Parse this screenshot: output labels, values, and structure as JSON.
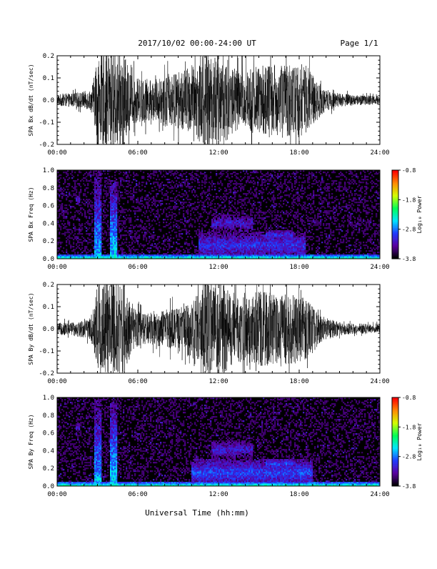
{
  "header": {
    "title": "2017/10/02  00:00-24:00 UT",
    "page": "Page 1/1"
  },
  "footer": {
    "xlabel": "Universal Time (hh:mm)"
  },
  "colors": {
    "trace": "#000000",
    "frame": "#000000",
    "background": "#ffffff",
    "spec_background": "#000000",
    "colormap": [
      "#000000",
      "#5b00a0",
      "#1f3cff",
      "#00e5ff",
      "#00ff55",
      "#d2ff00",
      "#ff8c00",
      "#ff0000"
    ]
  },
  "chart_data": [
    {
      "id": "bx-timeseries",
      "type": "line",
      "ylabel": "SPA Bx dB/dt (nT/sec)",
      "xlim": [
        0,
        24
      ],
      "ylim": [
        -0.2,
        0.2
      ],
      "x_ticks": [
        "00:00",
        "06:00",
        "12:00",
        "18:00",
        "24:00"
      ],
      "y_ticks": [
        {
          "v": 0.2,
          "label": "0.2"
        },
        {
          "v": 0.1,
          "label": "0.1"
        },
        {
          "v": 0.0,
          "label": "0.0"
        },
        {
          "v": -0.1,
          "label": "-0.1"
        },
        {
          "v": -0.2,
          "label": "-0.2"
        }
      ],
      "amplitude_envelope": {
        "x": [
          0,
          0.5,
          1.0,
          1.5,
          2.0,
          2.5,
          2.8,
          3.0,
          3.2,
          3.6,
          4.0,
          4.5,
          5.0,
          5.5,
          6.0,
          6.5,
          7.0,
          7.5,
          8.0,
          8.5,
          9.0,
          9.5,
          10.0,
          10.5,
          10.8,
          11.2,
          11.6,
          12.0,
          12.5,
          13.0,
          13.5,
          14.0,
          14.5,
          15.0,
          15.5,
          16.0,
          16.5,
          17.0,
          17.5,
          18.0,
          18.5,
          19.0,
          19.5,
          20.0,
          20.5,
          21.0,
          22.0,
          23.0,
          24.0
        ],
        "y": [
          0.025,
          0.03,
          0.03,
          0.035,
          0.04,
          0.045,
          0.12,
          0.22,
          0.2,
          0.22,
          0.22,
          0.22,
          0.2,
          0.12,
          0.1,
          0.1,
          0.09,
          0.1,
          0.12,
          0.12,
          0.13,
          0.14,
          0.16,
          0.18,
          0.22,
          0.22,
          0.22,
          0.22,
          0.2,
          0.16,
          0.14,
          0.14,
          0.15,
          0.16,
          0.16,
          0.16,
          0.16,
          0.16,
          0.17,
          0.17,
          0.16,
          0.12,
          0.08,
          0.05,
          0.04,
          0.03,
          0.025,
          0.022,
          0.02
        ]
      }
    },
    {
      "id": "bx-spectrogram",
      "type": "heatmap",
      "ylabel": "SPA Bx Freq (Hz)",
      "colorbar_label": "Log₁₀ Power",
      "colorbar_range": [
        -3.8,
        -0.8
      ],
      "colorbar_ticks": [
        {
          "v": -0.8,
          "label": "-0.8"
        },
        {
          "v": -1.8,
          "label": "-1.8"
        },
        {
          "v": -2.8,
          "label": "-2.8"
        },
        {
          "v": -3.8,
          "label": "-3.8"
        }
      ],
      "xlim": [
        0,
        24
      ],
      "ylim": [
        0,
        1.0
      ],
      "x_ticks": [
        "00:00",
        "06:00",
        "12:00",
        "18:00",
        "24:00"
      ],
      "y_ticks": [
        {
          "v": 1.0,
          "label": "1.0"
        },
        {
          "v": 0.8,
          "label": "0.8"
        },
        {
          "v": 0.6,
          "label": "0.6"
        },
        {
          "v": 0.4,
          "label": "0.4"
        },
        {
          "v": 0.2,
          "label": "0.2"
        },
        {
          "v": 0.0,
          "label": "0.0"
        }
      ],
      "noise_floor": -3.8,
      "features": [
        {
          "kind": "ground_band",
          "t0": 0.0,
          "t1": 24.0,
          "f_top": 0.05,
          "power": -2.6
        },
        {
          "kind": "burst",
          "t0": 2.8,
          "t1": 3.3,
          "f_top": 1.0,
          "power": -2.7
        },
        {
          "kind": "burst",
          "t0": 3.9,
          "t1": 4.5,
          "f_top": 0.9,
          "power": -2.6
        },
        {
          "kind": "blob",
          "t0": 1.4,
          "t1": 1.7,
          "f0": 0.6,
          "f1": 0.72,
          "power": -3.0
        },
        {
          "kind": "blob",
          "t0": 10.5,
          "t1": 18.5,
          "f0": 0.0,
          "f1": 0.3,
          "power": -2.9
        },
        {
          "kind": "blob",
          "t0": 11.5,
          "t1": 14.5,
          "f0": 0.3,
          "f1": 0.5,
          "power": -3.0
        },
        {
          "kind": "blob",
          "t0": 15.5,
          "t1": 17.5,
          "f0": 0.22,
          "f1": 0.32,
          "power": -2.9
        }
      ]
    },
    {
      "id": "by-timeseries",
      "type": "line",
      "ylabel": "SPA By dB/dt (nT/sec)",
      "xlim": [
        0,
        24
      ],
      "ylim": [
        -0.2,
        0.2
      ],
      "x_ticks": [
        "00:00",
        "06:00",
        "12:00",
        "18:00",
        "24:00"
      ],
      "y_ticks": [
        {
          "v": 0.2,
          "label": "0.2"
        },
        {
          "v": 0.1,
          "label": "0.1"
        },
        {
          "v": 0.0,
          "label": "0.0"
        },
        {
          "v": -0.1,
          "label": "-0.1"
        },
        {
          "v": -0.2,
          "label": "-0.2"
        }
      ],
      "amplitude_envelope": {
        "x": [
          0,
          0.5,
          1.0,
          1.5,
          2.0,
          2.5,
          2.8,
          3.0,
          3.2,
          3.6,
          4.0,
          4.5,
          5.0,
          5.5,
          6.0,
          6.5,
          7.0,
          7.5,
          8.0,
          8.5,
          9.0,
          9.5,
          10.0,
          10.5,
          10.8,
          11.2,
          11.6,
          12.0,
          12.5,
          13.0,
          13.5,
          14.0,
          14.5,
          15.0,
          15.5,
          16.0,
          16.5,
          17.0,
          17.5,
          18.0,
          18.5,
          19.0,
          19.5,
          20.0,
          20.5,
          21.0,
          22.0,
          23.0,
          24.0
        ],
        "y": [
          0.025,
          0.03,
          0.03,
          0.035,
          0.04,
          0.05,
          0.14,
          0.22,
          0.22,
          0.22,
          0.22,
          0.22,
          0.2,
          0.1,
          0.08,
          0.07,
          0.07,
          0.08,
          0.08,
          0.09,
          0.1,
          0.11,
          0.13,
          0.16,
          0.22,
          0.22,
          0.22,
          0.22,
          0.2,
          0.17,
          0.15,
          0.15,
          0.16,
          0.17,
          0.17,
          0.16,
          0.16,
          0.16,
          0.16,
          0.15,
          0.14,
          0.11,
          0.07,
          0.05,
          0.04,
          0.03,
          0.025,
          0.022,
          0.02
        ]
      }
    },
    {
      "id": "by-spectrogram",
      "type": "heatmap",
      "ylabel": "SPA By Freq (Hz)",
      "colorbar_label": "Log₁₀ Power",
      "colorbar_range": [
        -3.8,
        -0.8
      ],
      "colorbar_ticks": [
        {
          "v": -0.8,
          "label": "-0.8"
        },
        {
          "v": -1.8,
          "label": "-1.8"
        },
        {
          "v": -2.8,
          "label": "-2.8"
        },
        {
          "v": -3.8,
          "label": "-3.8"
        }
      ],
      "xlim": [
        0,
        24
      ],
      "ylim": [
        0,
        1.0
      ],
      "x_ticks": [
        "00:00",
        "06:00",
        "12:00",
        "18:00",
        "24:00"
      ],
      "y_ticks": [
        {
          "v": 1.0,
          "label": "1.0"
        },
        {
          "v": 0.8,
          "label": "0.8"
        },
        {
          "v": 0.6,
          "label": "0.6"
        },
        {
          "v": 0.4,
          "label": "0.4"
        },
        {
          "v": 0.2,
          "label": "0.2"
        },
        {
          "v": 0.0,
          "label": "0.0"
        }
      ],
      "noise_floor": -3.8,
      "features": [
        {
          "kind": "ground_band",
          "t0": 0.0,
          "t1": 24.0,
          "f_top": 0.05,
          "power": -2.6
        },
        {
          "kind": "burst",
          "t0": 2.8,
          "t1": 3.3,
          "f_top": 1.0,
          "power": -2.7
        },
        {
          "kind": "burst",
          "t0": 3.9,
          "t1": 4.5,
          "f_top": 0.95,
          "power": -2.6
        },
        {
          "kind": "blob",
          "t0": 1.4,
          "t1": 1.7,
          "f0": 0.6,
          "f1": 0.72,
          "power": -3.0
        },
        {
          "kind": "blob",
          "t0": 10.0,
          "t1": 19.0,
          "f0": 0.0,
          "f1": 0.3,
          "power": -2.8
        },
        {
          "kind": "blob",
          "t0": 11.5,
          "t1": 14.5,
          "f0": 0.3,
          "f1": 0.52,
          "power": -3.0
        },
        {
          "kind": "blob",
          "t0": 15.5,
          "t1": 17.5,
          "f0": 0.2,
          "f1": 0.3,
          "power": -2.8
        }
      ]
    }
  ]
}
